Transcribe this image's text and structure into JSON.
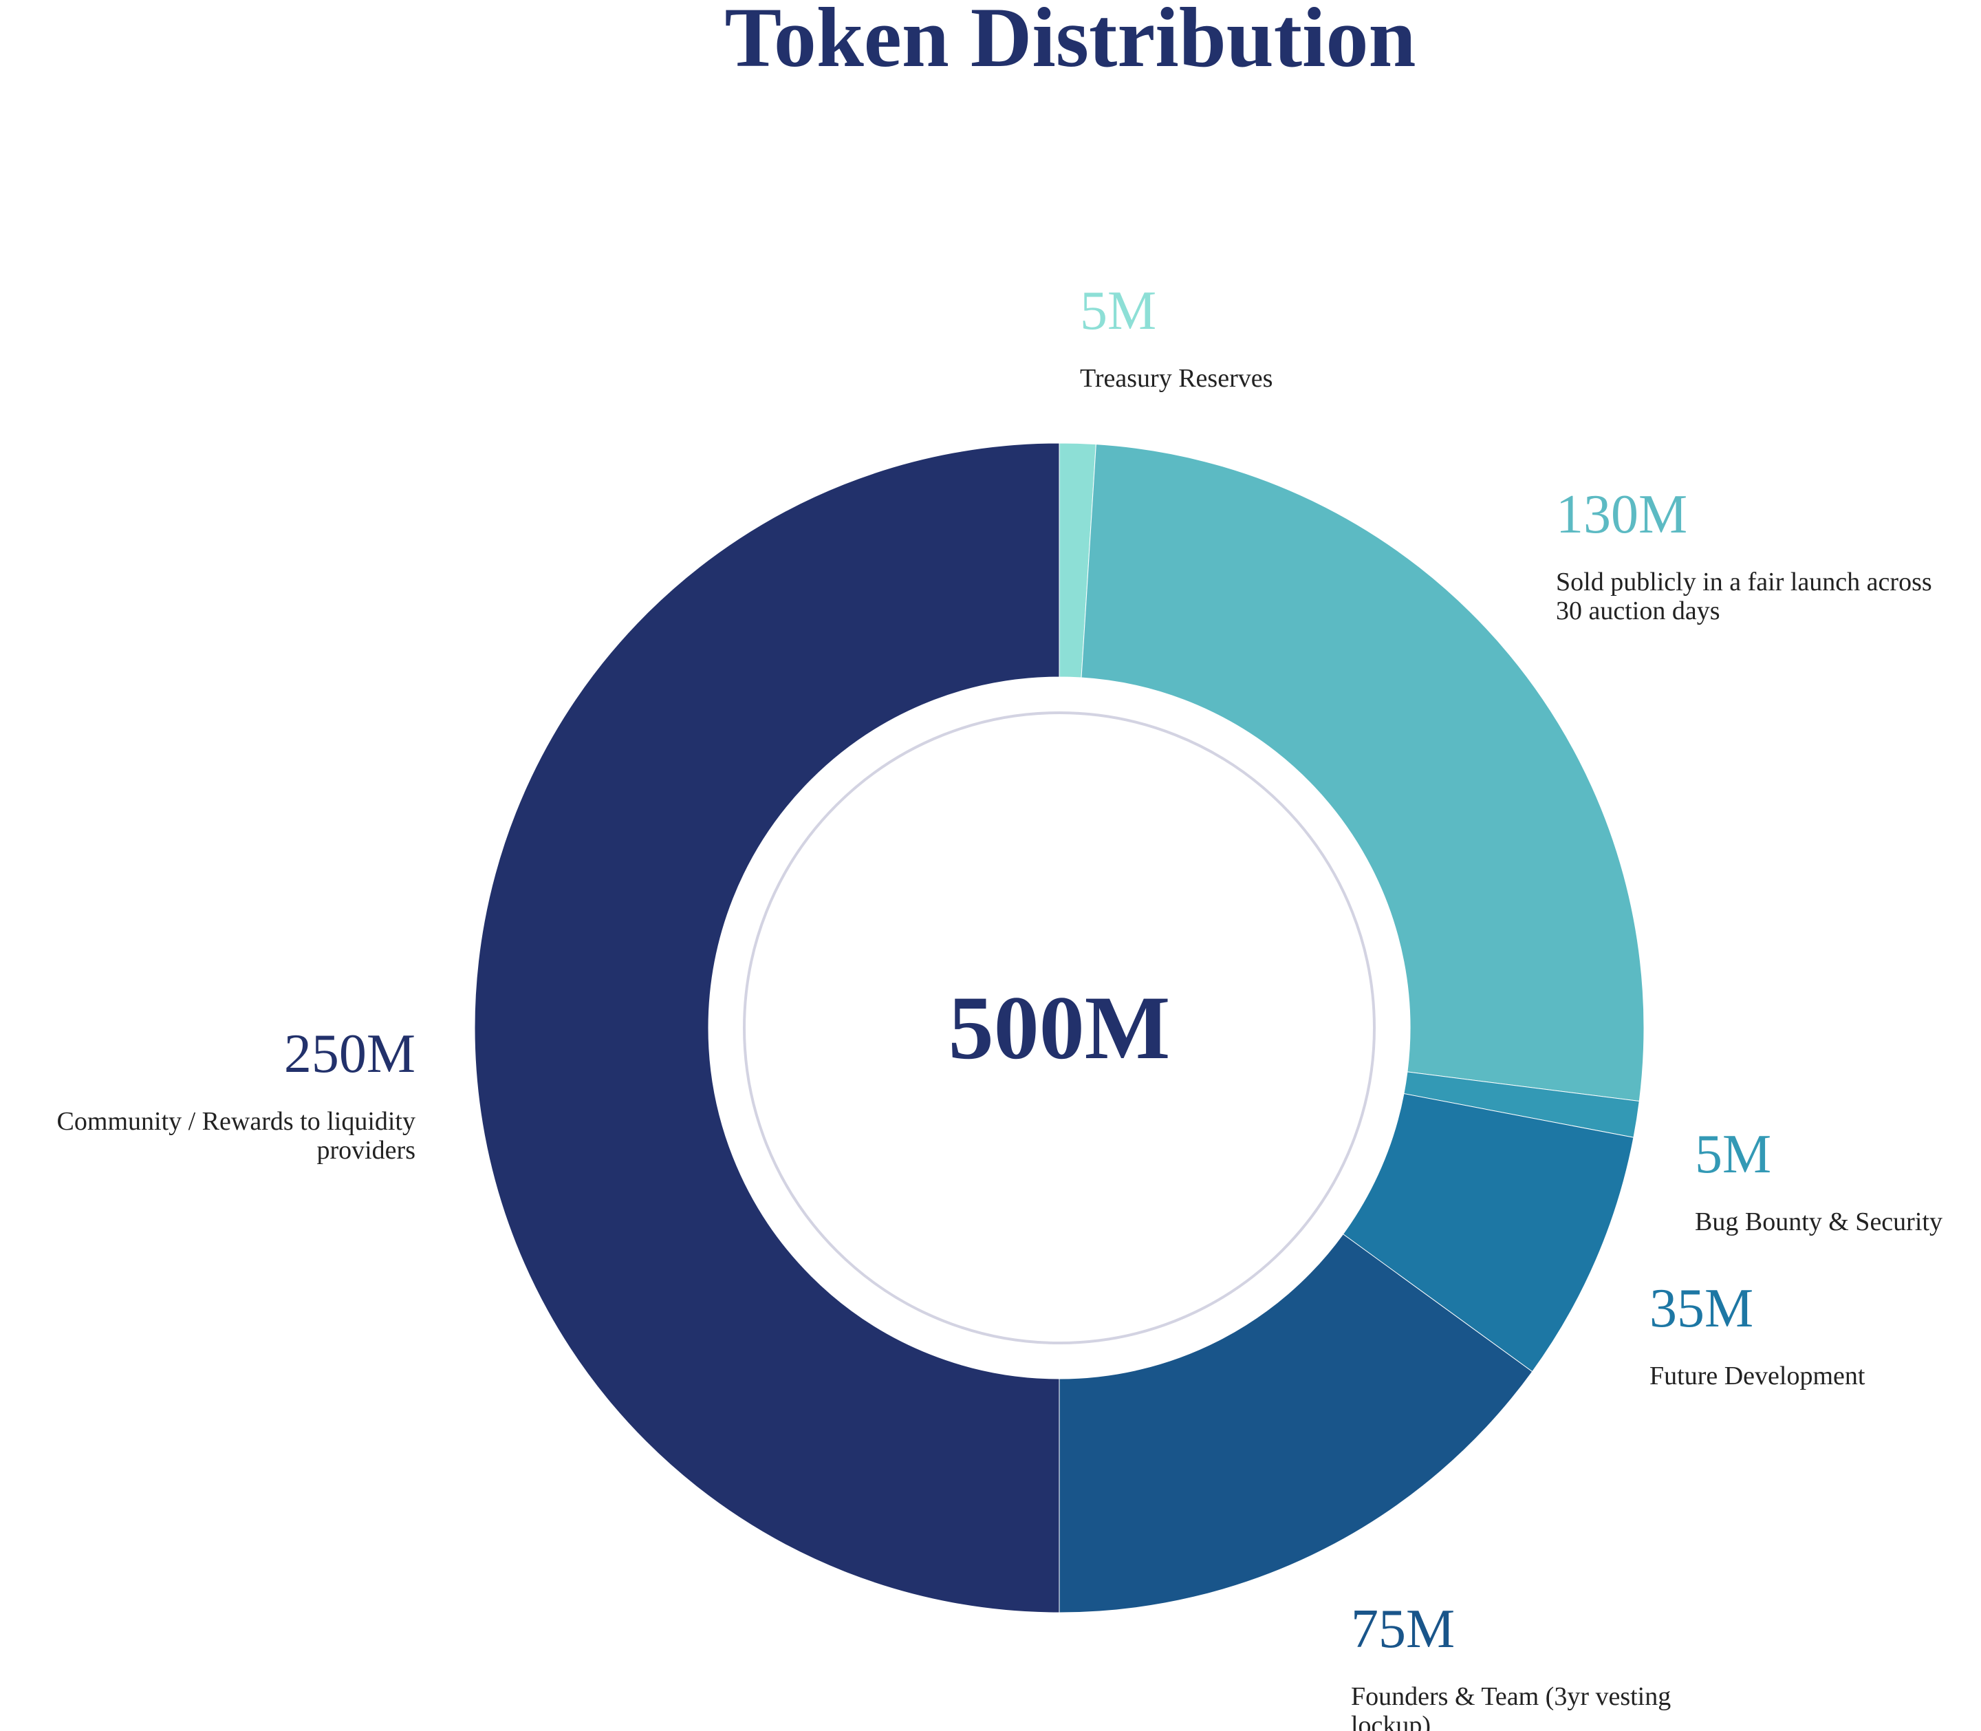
{
  "chart_data": {
    "type": "donut",
    "title": "Token Distribution",
    "center_label": "500M",
    "total": 500,
    "unit": "M",
    "slices": [
      {
        "value": 5,
        "label": "5M",
        "description_lines": [
          "Treasury Reserves"
        ],
        "color": "#8ddfd6",
        "label_color": "#8ddfd6"
      },
      {
        "value": 130,
        "label": "130M",
        "description_lines": [
          "Sold publicly in a fair launch across",
          "30 auction days"
        ],
        "color": "#5cbac3",
        "label_color": "#5cbac3"
      },
      {
        "value": 5,
        "label": "5M",
        "description_lines": [
          "Bug Bounty & Security"
        ],
        "color": "#3399b5",
        "label_color": "#3399b5"
      },
      {
        "value": 35,
        "label": "35M",
        "description_lines": [
          "Future Development"
        ],
        "color": "#1d77a4",
        "label_color": "#1d77a4"
      },
      {
        "value": 75,
        "label": "75M",
        "description_lines": [
          "Founders & Team (3yr vesting",
          "lockup)"
        ],
        "color": "#19558a",
        "label_color": "#19558a"
      },
      {
        "value": 250,
        "label": "250M",
        "description_lines": [
          "Community / Rewards to liquidity",
          "providers"
        ],
        "color": "#22316b",
        "label_color": "#22316b"
      }
    ]
  },
  "colors": {
    "title": "#22316b",
    "inner_ring": "#d3d3e2",
    "description_text": "#222222"
  }
}
